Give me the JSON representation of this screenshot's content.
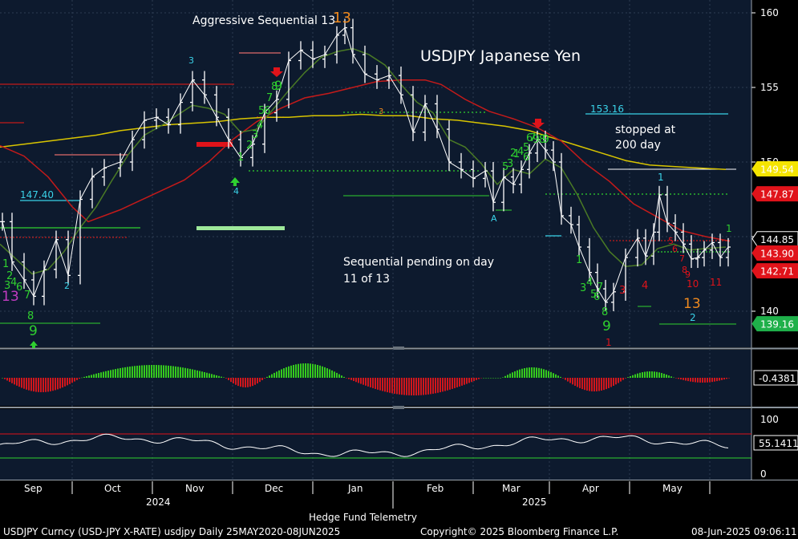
{
  "chart_data": [
    {
      "type": "candlestick",
      "title": "USDJPY Japanese Yen",
      "annotations": [
        "Aggressive Sequential 13",
        "stopped at",
        "200 day",
        "Sequential pending on day",
        "11 of 13",
        "153.16",
        "147.40"
      ],
      "ylim": [
        137,
        161
      ],
      "y_ticks": [
        140,
        145,
        150,
        155,
        160
      ],
      "value_labels": [
        {
          "value": "149.54",
          "color": "#f5e400",
          "text_color": "#000000"
        },
        {
          "value": "147.87",
          "color": "#e0131a",
          "text_color": "#ffffff"
        },
        {
          "value": "144.85",
          "color": "#000000",
          "text_color": "#ffffff"
        },
        {
          "value": "143.90",
          "color": "#e0131a",
          "text_color": "#ffffff"
        },
        {
          "value": "142.71",
          "color": "#e0131a",
          "text_color": "#ffffff"
        },
        {
          "value": "139.16",
          "color": "#1fb04a",
          "text_color": "#ffffff"
        }
      ],
      "series": [
        {
          "name": "200 day",
          "color": "#d8c400",
          "points": [
            [
              0,
              151.0
            ],
            [
              30,
              151.2
            ],
            [
              60,
              151.4
            ],
            [
              90,
              151.6
            ],
            [
              120,
              151.8
            ],
            [
              150,
              152.1
            ],
            [
              180,
              152.3
            ],
            [
              210,
              152.5
            ],
            [
              240,
              152.6
            ],
            [
              270,
              152.7
            ],
            [
              300,
              152.9
            ],
            [
              330,
              153.0
            ],
            [
              360,
              153.0
            ],
            [
              390,
              153.1
            ],
            [
              420,
              153.1
            ],
            [
              450,
              153.2
            ],
            [
              480,
              153.1
            ],
            [
              510,
              153.1
            ],
            [
              540,
              152.9
            ],
            [
              570,
              152.8
            ],
            [
              600,
              152.6
            ],
            [
              630,
              152.4
            ],
            [
              660,
              152.1
            ],
            [
              690,
              151.6
            ],
            [
              720,
              151.1
            ],
            [
              750,
              150.6
            ],
            [
              780,
              150.1
            ],
            [
              810,
              149.8
            ],
            [
              840,
              149.7
            ],
            [
              870,
              149.6
            ],
            [
              905,
              149.5
            ]
          ]
        },
        {
          "name": "",
          "color": "#c41a1a",
          "points": [
            [
              0,
              151.1
            ],
            [
              30,
              150.4
            ],
            [
              60,
              149.0
            ],
            [
              90,
              147.0
            ],
            [
              110,
              146.0
            ],
            [
              150,
              146.8
            ],
            [
              190,
              147.8
            ],
            [
              230,
              148.8
            ],
            [
              260,
              150.0
            ],
            [
              290,
              151.5
            ],
            [
              320,
              152.7
            ],
            [
              350,
              153.6
            ],
            [
              380,
              154.3
            ],
            [
              410,
              154.6
            ],
            [
              440,
              155.0
            ],
            [
              470,
              155.4
            ],
            [
              500,
              155.5
            ],
            [
              530,
              155.5
            ],
            [
              550,
              155.2
            ],
            [
              580,
              154.2
            ],
            [
              610,
              153.4
            ],
            [
              640,
              152.9
            ],
            [
              670,
              152.3
            ],
            [
              700,
              151.4
            ],
            [
              730,
              149.9
            ],
            [
              760,
              148.7
            ],
            [
              790,
              147.2
            ],
            [
              820,
              146.3
            ],
            [
              850,
              145.4
            ],
            [
              880,
              145.0
            ],
            [
              910,
              144.7
            ]
          ]
        },
        {
          "name": "",
          "color": "#4a7a25",
          "points": [
            [
              0,
              144.5
            ],
            [
              20,
              143.5
            ],
            [
              40,
              142.5
            ],
            [
              60,
              142.8
            ],
            [
              80,
              144.0
            ],
            [
              100,
              145.6
            ],
            [
              120,
              147.0
            ],
            [
              140,
              148.8
            ],
            [
              160,
              150.5
            ],
            [
              180,
              151.8
            ],
            [
              200,
              152.4
            ],
            [
              220,
              153.1
            ],
            [
              240,
              153.8
            ],
            [
              260,
              153.6
            ],
            [
              280,
              153.2
            ],
            [
              300,
              152.0
            ],
            [
              320,
              152.2
            ],
            [
              340,
              153.5
            ],
            [
              360,
              154.8
            ],
            [
              380,
              156.0
            ],
            [
              400,
              157.0
            ],
            [
              420,
              157.4
            ],
            [
              440,
              157.6
            ],
            [
              460,
              157.2
            ],
            [
              480,
              156.5
            ],
            [
              500,
              155.2
            ],
            [
              520,
              154.0
            ],
            [
              540,
              153.3
            ],
            [
              560,
              151.5
            ],
            [
              580,
              151.0
            ],
            [
              600,
              149.9
            ],
            [
              620,
              148.5
            ],
            [
              640,
              149.5
            ],
            [
              660,
              149.2
            ],
            [
              680,
              150.2
            ],
            [
              700,
              149.6
            ],
            [
              720,
              147.8
            ],
            [
              740,
              145.6
            ],
            [
              760,
              144.0
            ],
            [
              780,
              143.0
            ],
            [
              800,
              143.1
            ],
            [
              820,
              144.2
            ],
            [
              840,
              144.5
            ],
            [
              860,
              144.1
            ],
            [
              880,
              144.2
            ],
            [
              905,
              144.3
            ]
          ]
        },
        {
          "name": "price",
          "color": "#ffffff",
          "points": [
            [
              3,
              146.0
            ],
            [
              15,
              143.3
            ],
            [
              30,
              142.1
            ],
            [
              42,
              141.0
            ],
            [
              55,
              142.8
            ],
            [
              70,
              144.8
            ],
            [
              85,
              142.4
            ],
            [
              100,
              147.5
            ],
            [
              115,
              149.0
            ],
            [
              130,
              149.6
            ],
            [
              150,
              150.0
            ],
            [
              165,
              151.5
            ],
            [
              180,
              152.8
            ],
            [
              195,
              153.0
            ],
            [
              210,
              152.5
            ],
            [
              225,
              154.0
            ],
            [
              240,
              155.5
            ],
            [
              255,
              154.5
            ],
            [
              270,
              153.0
            ],
            [
              285,
              151.5
            ],
            [
              300,
              150.3
            ],
            [
              315,
              151.2
            ],
            [
              330,
              153.3
            ],
            [
              345,
              154.2
            ],
            [
              360,
              156.8
            ],
            [
              375,
              157.5
            ],
            [
              390,
              156.9
            ],
            [
              405,
              157.2
            ],
            [
              420,
              158.5
            ],
            [
              430,
              159.0
            ],
            [
              440,
              157.2
            ],
            [
              455,
              155.9
            ],
            [
              470,
              155.5
            ],
            [
              485,
              155.8
            ],
            [
              500,
              154.5
            ],
            [
              515,
              152.0
            ],
            [
              530,
              153.9
            ],
            [
              545,
              152.2
            ],
            [
              560,
              150.0
            ],
            [
              575,
              149.5
            ],
            [
              590,
              148.9
            ],
            [
              605,
              149.4
            ],
            [
              615,
              147.3
            ],
            [
              628,
              149.0
            ],
            [
              640,
              148.5
            ],
            [
              650,
              149.5
            ],
            [
              660,
              150.6
            ],
            [
              670,
              151.5
            ],
            [
              680,
              150.8
            ],
            [
              690,
              150.0
            ],
            [
              700,
              146.4
            ],
            [
              712,
              145.8
            ],
            [
              722,
              144.3
            ],
            [
              735,
              142.6
            ],
            [
              745,
              141.5
            ],
            [
              755,
              140.6
            ],
            [
              765,
              141.3
            ],
            [
              780,
              143.6
            ],
            [
              795,
              144.9
            ],
            [
              805,
              143.7
            ],
            [
              815,
              145.3
            ],
            [
              822,
              147.8
            ],
            [
              832,
              145.9
            ],
            [
              842,
              145.3
            ],
            [
              852,
              144.5
            ],
            [
              862,
              143.5
            ],
            [
              870,
              143.6
            ],
            [
              878,
              144.1
            ],
            [
              888,
              144.6
            ],
            [
              898,
              143.6
            ],
            [
              908,
              144.3
            ]
          ]
        }
      ],
      "sequential_labels": [
        "13",
        "9",
        "8",
        "7",
        "6",
        "4",
        "3",
        "2",
        "1",
        "3",
        "5",
        "6",
        "7",
        "8",
        "9",
        "4",
        "1",
        "2",
        "3",
        "4",
        "5",
        "6",
        "9",
        "3",
        "4",
        "5",
        "6",
        "7",
        "8",
        "9",
        "1",
        "13",
        "2",
        "3",
        "4",
        "5",
        "6",
        "7",
        "8",
        "9",
        "1",
        "1",
        "2",
        "3",
        "A",
        "1",
        "13",
        "10",
        "11",
        "3",
        "4",
        "5",
        "6",
        "7",
        "8",
        "9",
        "1",
        "2"
      ],
      "histogram": {
        "latest": "-0.4381",
        "colors": [
          "#35c91e",
          "#d0161c"
        ]
      },
      "oscillator": {
        "latest": "55.1411",
        "ticks": [
          "100",
          "50",
          "0"
        ],
        "upper": 70,
        "lower": 30
      }
    }
  ],
  "x_axis": {
    "months": [
      "Sep",
      "Oct",
      "Nov",
      "Dec",
      "Jan",
      "Feb",
      "Mar",
      "Apr",
      "May"
    ],
    "years": [
      "2024",
      "2025"
    ]
  },
  "footer": {
    "center": "Hedge Fund Telemetry",
    "left": "USDJPY Curncy (USD-JPY X-RATE) usdjpy  Daily 25MAY2020-08JUN2025",
    "mid": "Copyright© 2025 Bloomberg Finance L.P.",
    "right": "08-Jun-2025 09:06:11"
  },
  "colors": {
    "panel_bg": "#0d1a2e",
    "ma200": "#d8c400",
    "ma_red": "#c41a1a",
    "ma_green": "#4a7a25",
    "seq_green": "#2fd02f",
    "seq_red": "#e0131a",
    "seq_cyan": "#3ad2e8",
    "seq_orange": "#f08a1e",
    "seq_magenta": "#c23cc2"
  }
}
